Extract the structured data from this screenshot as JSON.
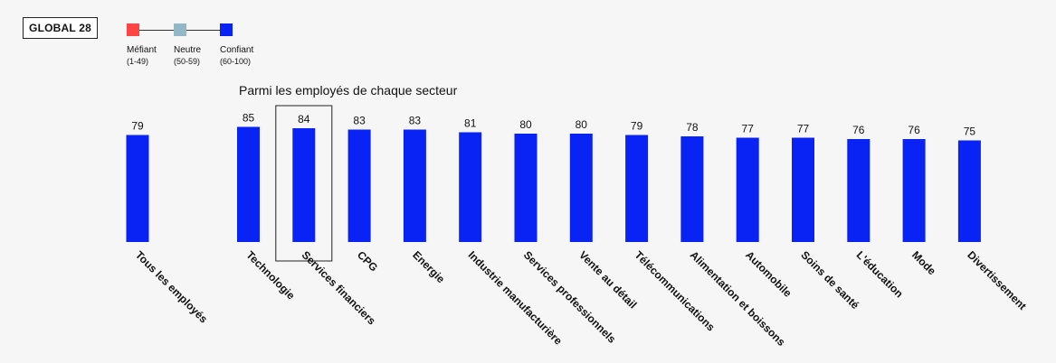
{
  "badge": "GLOBAL 28",
  "legend": [
    {
      "label": "Méfiant",
      "range": "(1-49)",
      "color": "#ff4444"
    },
    {
      "label": "Neutre",
      "range": "(50-59)",
      "color": "#92b7c6"
    },
    {
      "label": "Confiant",
      "range": "(60-100)",
      "color": "#0a23f5"
    }
  ],
  "subtitle": "Parmi les employés de chaque secteur",
  "chart_data": {
    "type": "bar",
    "categories": [
      "Tous les employés",
      "Technologie",
      "Services financiers",
      "CPG",
      "Energie",
      "Industrie manufacturière",
      "Services professionnels",
      "Vente au détail",
      "Télécommunications",
      "Alimentation et boissons",
      "Automobile",
      "Soins de santé",
      "L'éducation",
      "Mode",
      "Divertissement"
    ],
    "values": [
      79,
      85,
      84,
      83,
      83,
      81,
      80,
      80,
      79,
      78,
      77,
      77,
      76,
      76,
      75
    ],
    "highlighted": "Services financiers",
    "bar_color": "#0a23f5",
    "grid": false
  }
}
